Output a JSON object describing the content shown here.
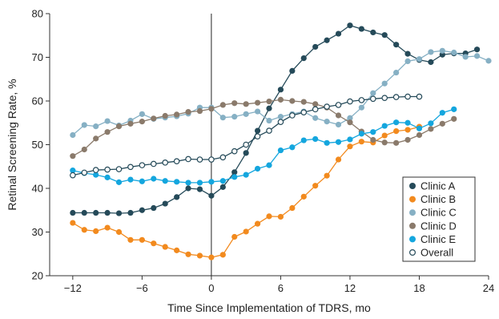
{
  "chart_data": {
    "type": "line",
    "xlabel": "Time Since Implementation of TDRS, mo",
    "ylabel": "Retinal Screening Rate, %",
    "xlim": [
      -14,
      24
    ],
    "ylim": [
      20,
      80
    ],
    "xticks": [
      -12,
      -6,
      0,
      6,
      12,
      18,
      24
    ],
    "xtick_labels": [
      "−12",
      "−6",
      "0",
      "6",
      "12",
      "18",
      "24"
    ],
    "yticks": [
      20,
      30,
      40,
      50,
      60,
      70,
      80
    ],
    "ytick_labels": [
      "20",
      "30",
      "40",
      "50",
      "60",
      "70",
      "80"
    ],
    "vline_x": 0,
    "grid": false,
    "legend_position": "bottom-right",
    "series": [
      {
        "name": "Clinic A",
        "color": "#254a59",
        "marker": "filled",
        "x": [
          -12,
          -11,
          -10,
          -9,
          -8,
          -7,
          -6,
          -5,
          -4,
          -3,
          -2,
          -1,
          0,
          1,
          2,
          3,
          4,
          5,
          6,
          7,
          8,
          9,
          10,
          11,
          12,
          13,
          14,
          15,
          16,
          17,
          18,
          19,
          20,
          21,
          22,
          23
        ],
        "values": [
          34.4,
          34.4,
          34.4,
          34.4,
          34.3,
          34.4,
          35.0,
          35.5,
          36.5,
          38.0,
          40.0,
          39.8,
          38.3,
          40.3,
          43.7,
          48.1,
          53.2,
          58.3,
          62.6,
          66.9,
          69.8,
          72.4,
          73.9,
          75.4,
          77.3,
          76.5,
          75.7,
          75.1,
          72.9,
          70.8,
          69.4,
          68.9,
          70.6,
          70.9,
          70.9,
          71.8
        ]
      },
      {
        "name": "Clinic B",
        "color": "#f28a1e",
        "marker": "filled",
        "x": [
          -12,
          -11,
          -10,
          -9,
          -8,
          -7,
          -6,
          -5,
          -4,
          -3,
          -2,
          -1,
          0,
          1,
          2,
          3,
          4,
          5,
          6,
          7,
          8,
          9,
          10,
          11,
          12,
          13,
          14,
          15,
          16,
          17,
          18
        ],
        "values": [
          32.1,
          30.5,
          30.2,
          31.0,
          30.0,
          28.2,
          28.2,
          27.4,
          26.6,
          25.8,
          24.9,
          24.6,
          24.2,
          24.8,
          28.9,
          30.1,
          31.9,
          33.6,
          33.5,
          35.5,
          38.1,
          40.6,
          42.9,
          46.6,
          49.6,
          50.7,
          50.5,
          52.1,
          53.1,
          53.4,
          54.1
        ]
      },
      {
        "name": "Clinic C",
        "color": "#86b0c4",
        "marker": "filled",
        "x": [
          -12,
          -11,
          -10,
          -9,
          -8,
          -7,
          -6,
          -5,
          -4,
          -3,
          -2,
          -1,
          0,
          1,
          2,
          3,
          4,
          5,
          6,
          7,
          8,
          9,
          10,
          11,
          12,
          13,
          14,
          15,
          16,
          17,
          18,
          19,
          20,
          21,
          22,
          23,
          24
        ],
        "values": [
          52.2,
          54.5,
          54.2,
          55.4,
          54.4,
          55.5,
          57.0,
          55.9,
          56.2,
          56.5,
          57.1,
          58.5,
          58.5,
          56.2,
          56.4,
          57.0,
          57.6,
          55.5,
          56.4,
          57.0,
          57.6,
          56.1,
          55.3,
          54.6,
          56.1,
          58.5,
          61.8,
          64.0,
          66.5,
          69.1,
          69.6,
          71.2,
          71.5,
          71.1,
          70.1,
          70.3,
          69.2
        ]
      },
      {
        "name": "Clinic D",
        "color": "#8a7a6b",
        "marker": "filled",
        "x": [
          -12,
          -11,
          -10,
          -9,
          -8,
          -7,
          -6,
          -5,
          -4,
          -3,
          -2,
          -1,
          0,
          1,
          2,
          3,
          4,
          5,
          6,
          7,
          8,
          9,
          10,
          11,
          12,
          13,
          14,
          15,
          16,
          17,
          18,
          19,
          20,
          21
        ],
        "values": [
          47.4,
          48.9,
          51.4,
          52.9,
          54.2,
          54.8,
          55.3,
          56.0,
          56.6,
          56.9,
          57.5,
          57.7,
          58.2,
          59.1,
          59.5,
          59.3,
          59.6,
          59.9,
          60.3,
          60.0,
          59.8,
          59.3,
          58.5,
          56.7,
          55.1,
          53.0,
          51.1,
          50.5,
          50.4,
          51.1,
          52.2,
          53.6,
          54.8,
          55.9
        ]
      },
      {
        "name": "Clinic E",
        "color": "#14a6de",
        "marker": "filled",
        "x": [
          -12,
          -11,
          -10,
          -9,
          -8,
          -7,
          -6,
          -5,
          -4,
          -3,
          -2,
          -1,
          0,
          1,
          2,
          3,
          4,
          5,
          6,
          7,
          8,
          9,
          10,
          11,
          12,
          13,
          14,
          15,
          16,
          17,
          18,
          19,
          20,
          21
        ],
        "values": [
          44.1,
          43.5,
          43.1,
          42.5,
          41.4,
          42.0,
          41.6,
          42.2,
          41.7,
          41.5,
          41.3,
          41.3,
          41.5,
          41.7,
          42.6,
          43.1,
          44.5,
          45.3,
          48.7,
          49.4,
          51.0,
          51.3,
          50.4,
          50.6,
          51.2,
          52.5,
          52.9,
          54.3,
          55.1,
          55.0,
          53.7,
          54.9,
          57.3,
          58.1
        ]
      },
      {
        "name": "Overall",
        "color": "#254a59",
        "marker": "open",
        "x": [
          -12,
          -11,
          -10,
          -9,
          -8,
          -7,
          -6,
          -5,
          -4,
          -3,
          -2,
          -1,
          0,
          1,
          2,
          3,
          4,
          5,
          6,
          7,
          8,
          9,
          10,
          11,
          12,
          13,
          14,
          15,
          16,
          17,
          18
        ],
        "values": [
          43.0,
          43.6,
          44.2,
          44.3,
          44.4,
          44.9,
          45.3,
          45.6,
          45.9,
          46.2,
          46.7,
          46.6,
          46.6,
          47.1,
          48.5,
          50.0,
          51.9,
          53.2,
          55.2,
          56.7,
          57.4,
          58.1,
          58.7,
          59.1,
          59.9,
          60.2,
          60.5,
          60.7,
          60.9,
          61.0,
          61.0
        ]
      }
    ]
  }
}
